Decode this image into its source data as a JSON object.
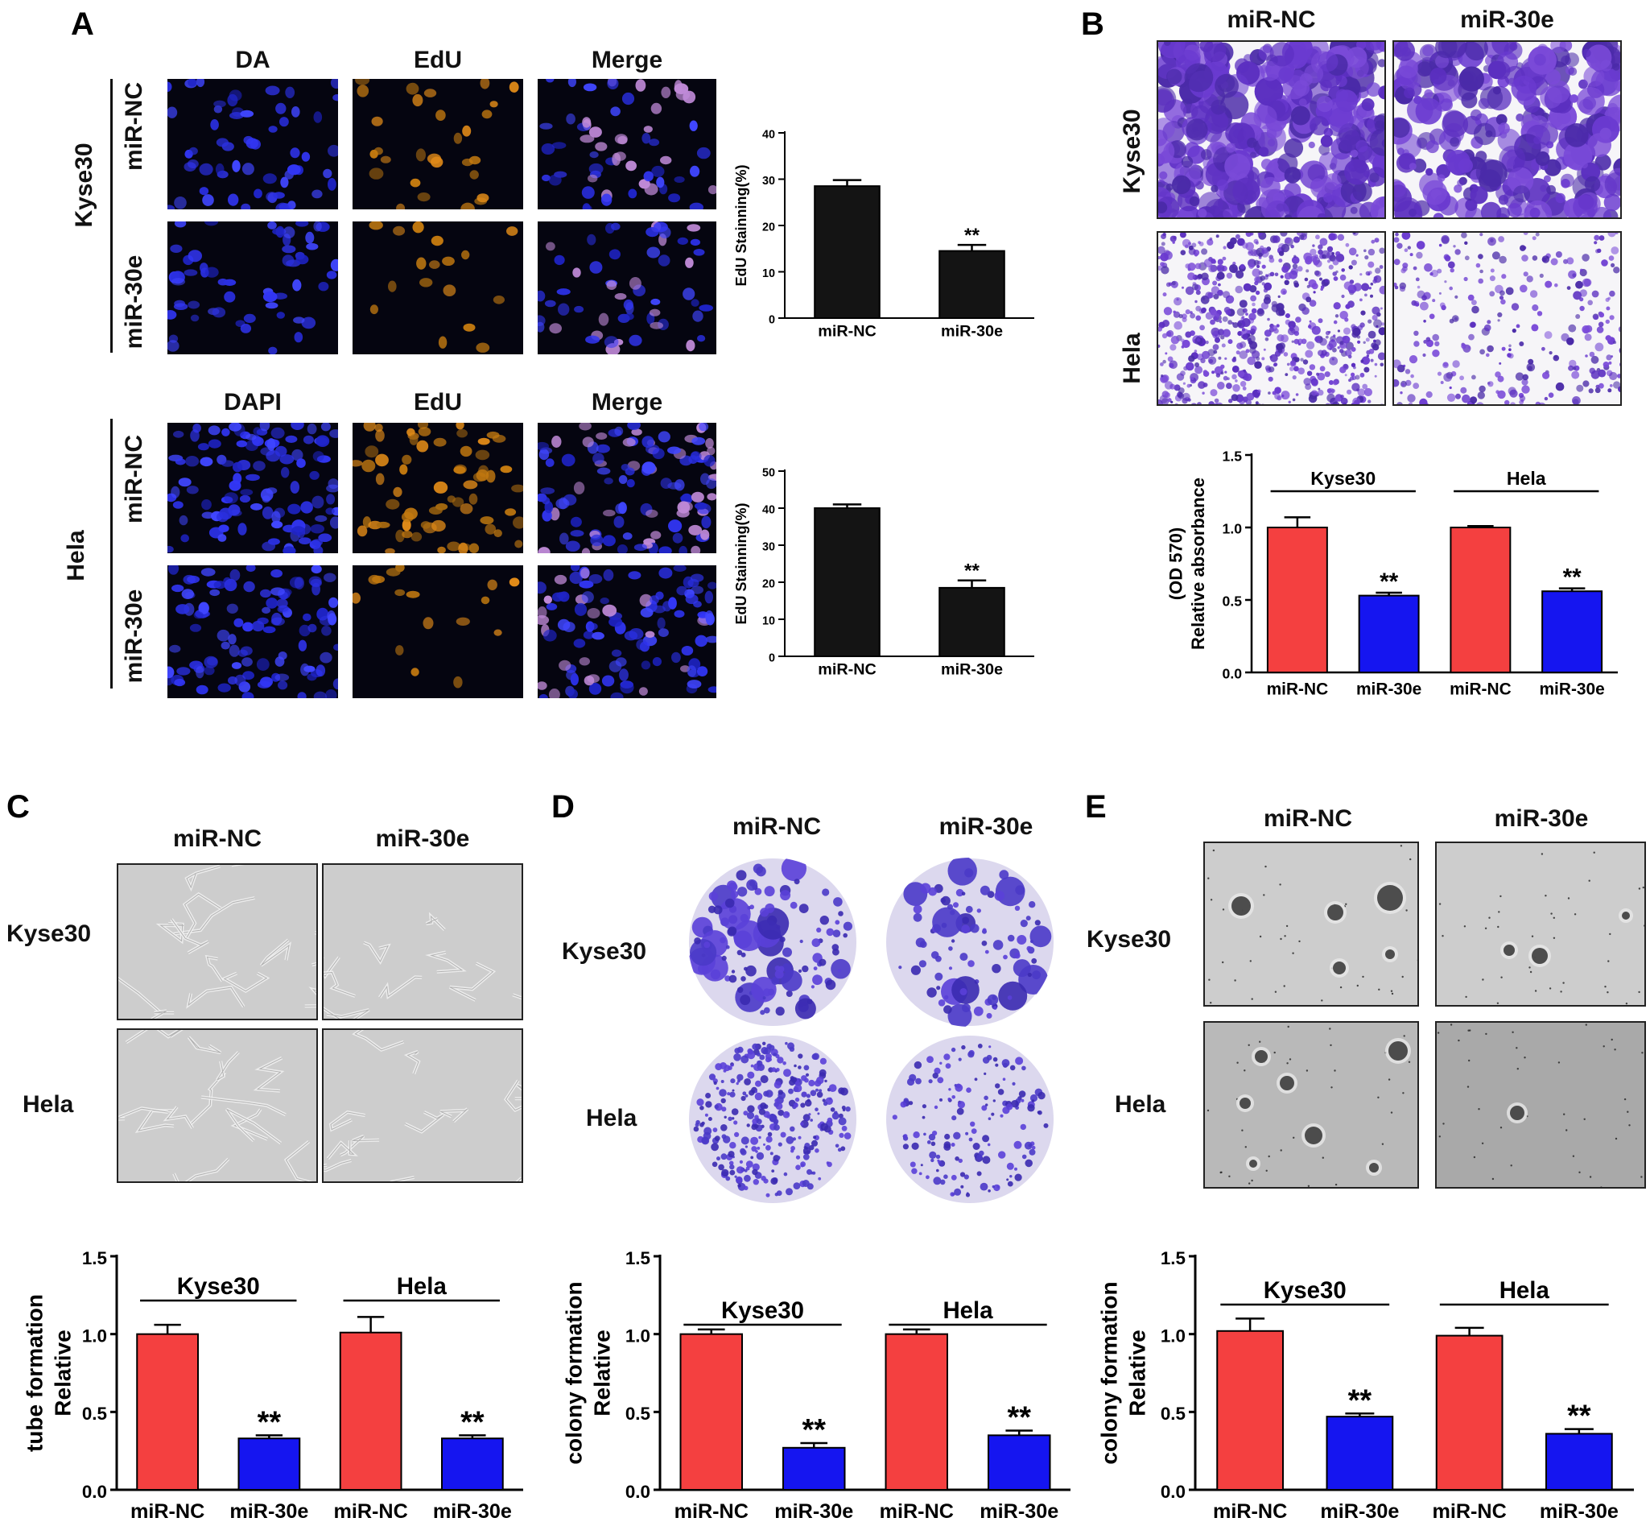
{
  "panelA": {
    "label": "A",
    "kyse": {
      "cell_line": "Kyse30",
      "col_titles": [
        "DA",
        "EdU",
        "Merge"
      ],
      "row_labels": [
        "miR-NC",
        "miR-30e"
      ]
    },
    "hela": {
      "cell_line": "Hela",
      "col_titles": [
        "DAPI",
        "EdU",
        "Merge"
      ],
      "row_labels": [
        "miR-NC",
        "miR-30e"
      ]
    }
  },
  "panelB": {
    "label": "B",
    "col_titles": [
      "miR-NC",
      "miR-30e"
    ],
    "row_labels": [
      "Kyse30",
      "Hela"
    ]
  },
  "panelC": {
    "label": "C",
    "col_titles": [
      "miR-NC",
      "miR-30e"
    ],
    "row_labels": [
      "Kyse30",
      "Hela"
    ]
  },
  "panelD": {
    "label": "D",
    "col_titles": [
      "miR-NC",
      "miR-30e"
    ],
    "row_labels": [
      "Kyse30",
      "Hela"
    ]
  },
  "panelE": {
    "label": "E",
    "col_titles": [
      "miR-NC",
      "miR-30e"
    ],
    "row_labels": [
      "Kyse30",
      "Hela"
    ]
  },
  "colors": {
    "control": "#f44040",
    "treated": "#1515f0",
    "black_bar": "#141414"
  },
  "chart_data": [
    {
      "id": "A1",
      "type": "bar",
      "panel": "A",
      "categories": [
        "miR-NC",
        "miR-30e"
      ],
      "values": [
        28.5,
        14.5
      ],
      "errors": [
        1.3,
        1.3
      ],
      "annotations": [
        "",
        "**"
      ],
      "ylabel": "EdU Stainning(%)",
      "ylim": [
        0,
        40
      ],
      "yticks": [
        0,
        10,
        20,
        30,
        40
      ],
      "color": "black"
    },
    {
      "id": "A2",
      "type": "bar",
      "panel": "A",
      "categories": [
        "miR-NC",
        "miR-30e"
      ],
      "values": [
        40,
        18.5
      ],
      "errors": [
        1,
        2
      ],
      "annotations": [
        "",
        "**"
      ],
      "ylabel": "EdU Stainning(%)",
      "ylim": [
        0,
        50
      ],
      "yticks": [
        0,
        10,
        20,
        30,
        40,
        50
      ],
      "color": "black"
    },
    {
      "id": "B",
      "type": "bar",
      "panel": "B",
      "categories": [
        "miR-NC",
        "miR-30e",
        "miR-NC",
        "miR-30e"
      ],
      "groups": [
        "Kyse30",
        "Hela"
      ],
      "values": [
        1.0,
        0.53,
        1.0,
        0.56
      ],
      "errors": [
        0.07,
        0.02,
        0.01,
        0.02
      ],
      "annotations": [
        "",
        "**",
        "",
        "**"
      ],
      "ylabel": "Relative absorbance\n(OD 570)",
      "ylim": [
        0,
        1.5
      ],
      "yticks": [
        0.0,
        0.5,
        1.0,
        1.5
      ],
      "tick_labels": [
        "0.0",
        "0.5",
        "1.0",
        "1.5"
      ]
    },
    {
      "id": "C",
      "type": "bar",
      "panel": "C",
      "categories": [
        "miR-NC",
        "miR-30e",
        "miR-NC",
        "miR-30e"
      ],
      "groups": [
        "Kyse30",
        "Hela"
      ],
      "values": [
        1.0,
        0.33,
        1.01,
        0.33
      ],
      "errors": [
        0.06,
        0.02,
        0.1,
        0.02
      ],
      "annotations": [
        "",
        "**",
        "",
        "**"
      ],
      "ylabel": "Relative\ntube formation",
      "ylim": [
        0,
        1.5
      ],
      "yticks": [
        0.0,
        0.5,
        1.0,
        1.5
      ],
      "tick_labels": [
        "0.0",
        "0.5",
        "1.0",
        "1.5"
      ]
    },
    {
      "id": "D",
      "type": "bar",
      "panel": "D",
      "categories": [
        "miR-NC",
        "miR-30e",
        "miR-NC",
        "miR-30e"
      ],
      "groups": [
        "Kyse30",
        "Hela"
      ],
      "values": [
        1.0,
        0.27,
        1.0,
        0.35
      ],
      "errors": [
        0.03,
        0.03,
        0.03,
        0.03
      ],
      "annotations": [
        "",
        "**",
        "",
        "**"
      ],
      "ylabel": "Relative\ncolony formation",
      "ylim": [
        0,
        1.5
      ],
      "yticks": [
        0.0,
        0.5,
        1.0,
        1.5
      ],
      "tick_labels": [
        "0.0",
        "0.5",
        "1.0",
        "1.5"
      ]
    },
    {
      "id": "E",
      "type": "bar",
      "panel": "E",
      "categories": [
        "miR-NC",
        "miR-30e",
        "miR-NC",
        "miR-30e"
      ],
      "groups": [
        "Kyse30",
        "Hela"
      ],
      "values": [
        1.02,
        0.47,
        0.99,
        0.36
      ],
      "errors": [
        0.08,
        0.02,
        0.05,
        0.03
      ],
      "annotations": [
        "",
        "**",
        "",
        "**"
      ],
      "ylabel": "Relative\ncolony formation",
      "ylim": [
        0,
        1.5
      ],
      "yticks": [
        0.0,
        0.5,
        1.0,
        1.5
      ],
      "tick_labels": [
        "0.0",
        "0.5",
        "1.0",
        "1.5"
      ]
    }
  ]
}
